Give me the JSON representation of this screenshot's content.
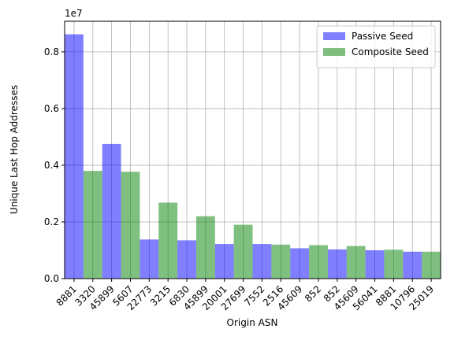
{
  "chart_data": {
    "type": "bar",
    "x_label": "Origin ASN",
    "y_label": "Unique Last Hop Addresses",
    "y_offset_label": "1e7",
    "categories": [
      "8881",
      "3320",
      "45899",
      "5607",
      "22773",
      "3215",
      "6830",
      "45899",
      "20001",
      "27699",
      "7552",
      "2516",
      "45609",
      "852",
      "852",
      "45609",
      "56041",
      "8881",
      "10796",
      "25019"
    ],
    "series": [
      {
        "name": "Passive Seed",
        "color": "#0000ff",
        "values": [
          0.862,
          null,
          0.475,
          null,
          0.138,
          null,
          0.135,
          null,
          0.122,
          null,
          0.122,
          null,
          0.107,
          null,
          0.103,
          null,
          0.1,
          null,
          0.095,
          null
        ]
      },
      {
        "name": "Composite Seed",
        "color": "#008000",
        "values": [
          null,
          0.38,
          null,
          0.377,
          null,
          0.268,
          null,
          0.22,
          null,
          0.19,
          null,
          0.12,
          null,
          0.118,
          null,
          0.115,
          null,
          0.102,
          null,
          0.095
        ]
      }
    ],
    "ylim": [
      0,
      0.908
    ],
    "yticks": [
      {
        "value": 0,
        "label": "0.0"
      },
      0.2,
      0.4,
      0.6,
      0.8
    ],
    "grid": true,
    "legend": "upper right"
  }
}
